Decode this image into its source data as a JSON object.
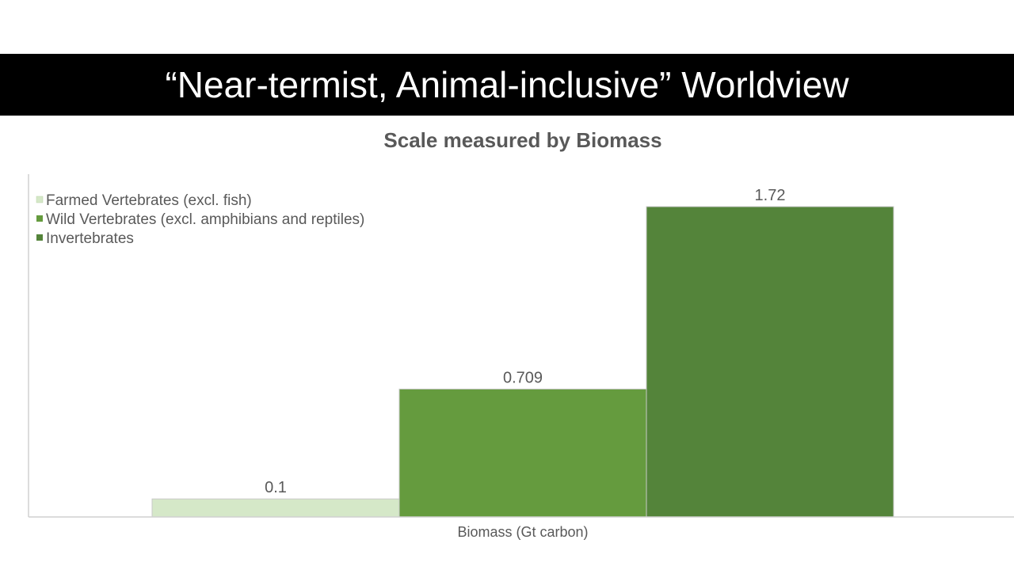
{
  "slide": {
    "title": "“Near-termist, Animal-inclusive” Worldview"
  },
  "chart_data": {
    "type": "bar",
    "title": "Scale measured by Biomass",
    "xlabel": "Biomass (Gt carbon)",
    "ylabel": "",
    "categories": [
      "Biomass (Gt carbon)"
    ],
    "series": [
      {
        "name": "Farmed Vertebrates (excl. fish)",
        "values": [
          0.1
        ],
        "label": "0.1",
        "color": "#d5e8c8"
      },
      {
        "name": "Wild Vertebrates (excl. amphibians and reptiles)",
        "values": [
          0.709
        ],
        "label": "0.709",
        "color": "#659b3e"
      },
      {
        "name": "Invertebrates",
        "values": [
          1.72
        ],
        "label": "1.72",
        "color": "#54843a"
      }
    ],
    "ylim": [
      0,
      1.9
    ],
    "grid": false,
    "legend": "top-left",
    "colors": {
      "axis": "#d0d0d0",
      "text": "#595959",
      "bar_border": "#c8c8c8"
    }
  }
}
